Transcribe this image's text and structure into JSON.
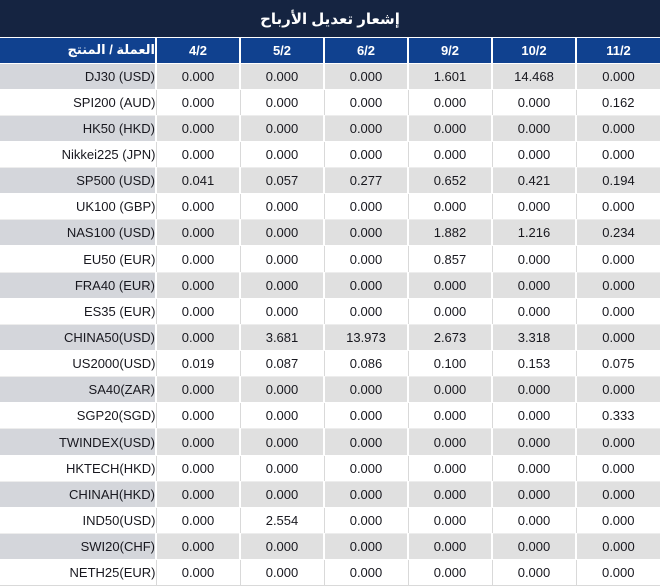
{
  "title": "إشعار تعديل الأرباح",
  "colors": {
    "title_bar_bg": "#152441",
    "header_bg": "#10418f",
    "header_text": "#ffffff",
    "stripe_row_bg": "#e0e0e0",
    "stripe_product_bg": "#d4d6db",
    "value_text": "#18181f",
    "negative_red": "#ee1b1b"
  },
  "table": {
    "product_header": "العملة / المنتج",
    "date_headers": [
      "4/2",
      "5/2",
      "6/2",
      "9/2",
      "10/2",
      "11/2"
    ],
    "rows": [
      {
        "product": "DJ30 (USD)",
        "values": [
          "0.000",
          "0.000",
          "0.000",
          "1.601",
          "14.468",
          "0.000"
        ],
        "red": [
          false,
          false,
          false,
          true,
          true,
          false
        ]
      },
      {
        "product": "SPI200 (AUD)",
        "values": [
          "0.000",
          "0.000",
          "0.000",
          "0.000",
          "0.000",
          "0.162"
        ],
        "red": [
          false,
          false,
          false,
          false,
          false,
          true
        ]
      },
      {
        "product": "HK50 (HKD)",
        "values": [
          "0.000",
          "0.000",
          "0.000",
          "0.000",
          "0.000",
          "0.000"
        ],
        "red": [
          false,
          false,
          false,
          false,
          false,
          false
        ]
      },
      {
        "product": "Nikkei225 (JPN)",
        "values": [
          "0.000",
          "0.000",
          "0.000",
          "0.000",
          "0.000",
          "0.000"
        ],
        "red": [
          false,
          false,
          false,
          false,
          false,
          false
        ]
      },
      {
        "product": "SP500 (USD)",
        "values": [
          "0.041",
          "0.057",
          "0.277",
          "0.652",
          "0.421",
          "0.194"
        ],
        "red": [
          true,
          true,
          true,
          true,
          true,
          true
        ]
      },
      {
        "product": "UK100 (GBP)",
        "values": [
          "0.000",
          "0.000",
          "0.000",
          "0.000",
          "0.000",
          "0.000"
        ],
        "red": [
          false,
          false,
          false,
          false,
          false,
          false
        ]
      },
      {
        "product": "NAS100 (USD)",
        "values": [
          "0.000",
          "0.000",
          "0.000",
          "1.882",
          "1.216",
          "0.234"
        ],
        "red": [
          false,
          false,
          false,
          true,
          true,
          true
        ]
      },
      {
        "product": "EU50 (EUR)",
        "values": [
          "0.000",
          "0.000",
          "0.000",
          "0.857",
          "0.000",
          "0.000"
        ],
        "red": [
          false,
          false,
          false,
          true,
          false,
          false
        ]
      },
      {
        "product": "FRA40 (EUR)",
        "values": [
          "0.000",
          "0.000",
          "0.000",
          "0.000",
          "0.000",
          "0.000"
        ],
        "red": [
          false,
          false,
          false,
          false,
          false,
          false
        ]
      },
      {
        "product": "ES35 (EUR)",
        "values": [
          "0.000",
          "0.000",
          "0.000",
          "0.000",
          "0.000",
          "0.000"
        ],
        "red": [
          false,
          false,
          false,
          false,
          false,
          false
        ]
      },
      {
        "product": "CHINA50(USD)",
        "values": [
          "0.000",
          "3.681",
          "13.973",
          "2.673",
          "3.318",
          "0.000"
        ],
        "red": [
          false,
          true,
          true,
          true,
          true,
          false
        ]
      },
      {
        "product": "US2000(USD)",
        "values": [
          "0.019",
          "0.087",
          "0.086",
          "0.100",
          "0.153",
          "0.075"
        ],
        "red": [
          true,
          true,
          true,
          true,
          true,
          true
        ]
      },
      {
        "product": "SA40(ZAR)",
        "values": [
          "0.000",
          "0.000",
          "0.000",
          "0.000",
          "0.000",
          "0.000"
        ],
        "red": [
          false,
          false,
          false,
          false,
          false,
          false
        ]
      },
      {
        "product": "SGP20(SGD)",
        "values": [
          "0.000",
          "0.000",
          "0.000",
          "0.000",
          "0.000",
          "0.333"
        ],
        "red": [
          false,
          false,
          false,
          false,
          false,
          true
        ]
      },
      {
        "product": "TWINDEX(USD)",
        "values": [
          "0.000",
          "0.000",
          "0.000",
          "0.000",
          "0.000",
          "0.000"
        ],
        "red": [
          false,
          false,
          false,
          false,
          false,
          false
        ]
      },
      {
        "product": "HKTECH(HKD)",
        "values": [
          "0.000",
          "0.000",
          "0.000",
          "0.000",
          "0.000",
          "0.000"
        ],
        "red": [
          false,
          false,
          false,
          false,
          false,
          false
        ]
      },
      {
        "product": "CHINAH(HKD)",
        "values": [
          "0.000",
          "0.000",
          "0.000",
          "0.000",
          "0.000",
          "0.000"
        ],
        "red": [
          false,
          false,
          false,
          false,
          false,
          false
        ]
      },
      {
        "product": "IND50(USD)",
        "values": [
          "0.000",
          "2.554",
          "0.000",
          "0.000",
          "0.000",
          "0.000"
        ],
        "red": [
          false,
          true,
          false,
          false,
          false,
          false
        ]
      },
      {
        "product": "SWI20(CHF)",
        "values": [
          "0.000",
          "0.000",
          "0.000",
          "0.000",
          "0.000",
          "0.000"
        ],
        "red": [
          false,
          false,
          false,
          false,
          false,
          false
        ]
      },
      {
        "product": "NETH25(EUR)",
        "values": [
          "0.000",
          "0.000",
          "0.000",
          "0.000",
          "0.000",
          "0.000"
        ],
        "red": [
          false,
          false,
          false,
          false,
          false,
          false
        ]
      }
    ]
  }
}
